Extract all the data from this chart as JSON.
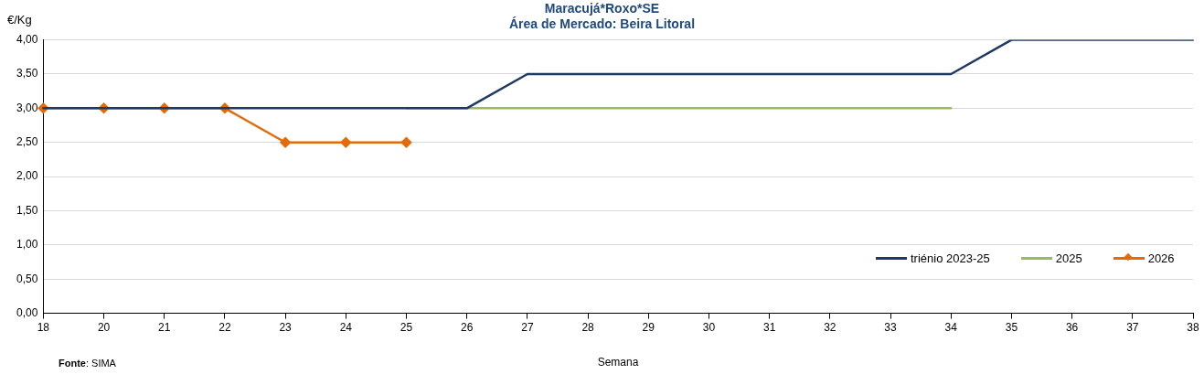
{
  "chart_data": {
    "type": "line",
    "title": "Maracujá*Roxo*SE",
    "subtitle": "Área de Mercado: Beira Litoral",
    "xlabel": "Semana",
    "ylabel": "€/Kg",
    "categories": [
      "18",
      "20",
      "21",
      "22",
      "23",
      "24",
      "25",
      "26",
      "27",
      "28",
      "29",
      "30",
      "31",
      "32",
      "33",
      "34",
      "35",
      "36",
      "37",
      "38"
    ],
    "series": [
      {
        "name": "triénio 2023-25",
        "color": "#203864",
        "marker": "none",
        "values": [
          3,
          3,
          3,
          3,
          3,
          3,
          3,
          3,
          3.5,
          3.5,
          3.5,
          3.5,
          3.5,
          3.5,
          3.5,
          3.5,
          4,
          4,
          4,
          4
        ]
      },
      {
        "name": "2025",
        "color": "#9bbb59",
        "marker": "none",
        "values": [
          null,
          null,
          null,
          null,
          null,
          null,
          3,
          3,
          3,
          3,
          3,
          3,
          3,
          3,
          3,
          3,
          null,
          null,
          null,
          null
        ]
      },
      {
        "name": "2026",
        "color": "#e36c09",
        "marker": "diamond",
        "values": [
          3,
          3,
          3,
          3,
          2.5,
          2.5,
          2.5,
          null,
          null,
          null,
          null,
          null,
          null,
          null,
          null,
          null,
          null,
          null,
          null,
          null
        ]
      }
    ],
    "ylim": [
      0,
      4
    ],
    "yticks": [
      {
        "value": 0,
        "label": "0,00"
      },
      {
        "value": 0.5,
        "label": "0,50"
      },
      {
        "value": 1,
        "label": "1,00"
      },
      {
        "value": 1.5,
        "label": "1,50"
      },
      {
        "value": 2,
        "label": "2,00"
      },
      {
        "value": 2.5,
        "label": "2,50"
      },
      {
        "value": 3,
        "label": "3,00"
      },
      {
        "value": 3.5,
        "label": "3,50"
      },
      {
        "value": 4,
        "label": "4,00"
      }
    ],
    "grid": "y",
    "legend": "bottom right",
    "line_style": "solid",
    "annotations": [
      "Fonte: SIMA"
    ]
  }
}
